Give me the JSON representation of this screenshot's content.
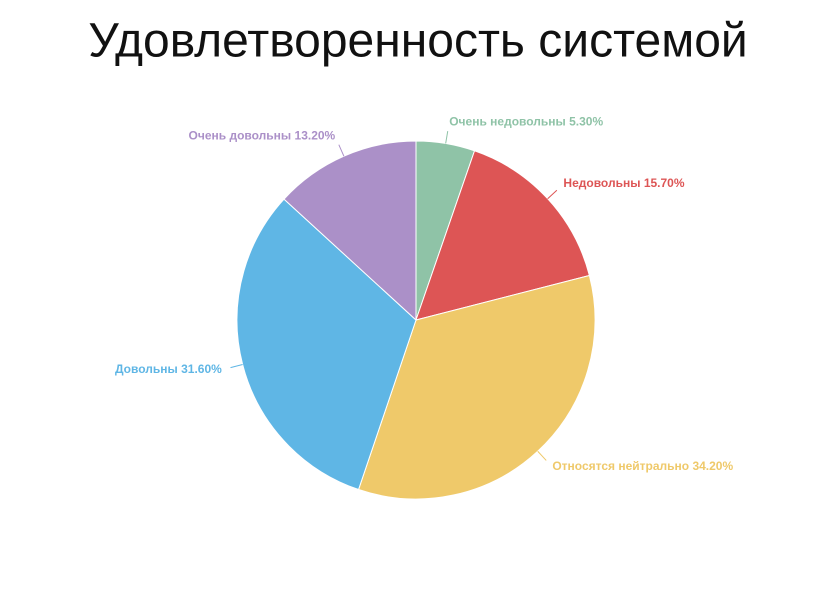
{
  "chart_data": {
    "type": "pie",
    "title": "Удовлетворенность системой",
    "categories": [
      "Очень недовольны",
      "Недовольны",
      "Относятся нейтрально",
      "Довольны",
      "Очень довольны"
    ],
    "values": [
      5.3,
      15.7,
      34.2,
      31.6,
      13.2
    ],
    "value_labels": [
      "5.30%",
      "15.70%",
      "34.20%",
      "31.60%",
      "13.20%"
    ],
    "colors": [
      "#8fc3a7",
      "#dd5555",
      "#efc96a",
      "#5fb6e5",
      "#ab90c8"
    ]
  }
}
